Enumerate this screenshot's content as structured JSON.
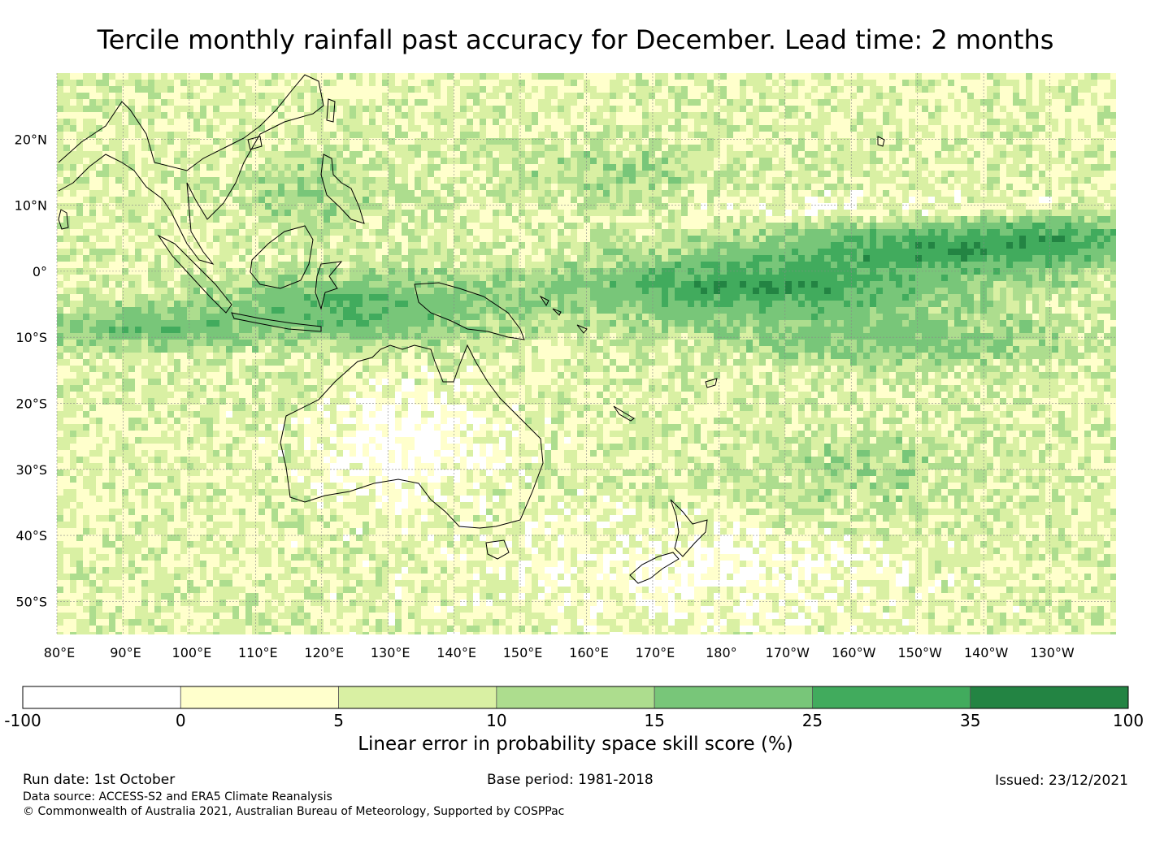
{
  "title": "Tercile monthly rainfall past accuracy for December. Lead time: 2 months",
  "map": {
    "lat_labels": [
      "20°N",
      "10°N",
      "0°",
      "10°S",
      "20°S",
      "30°S",
      "40°S",
      "50°S"
    ],
    "lat_values": [
      20,
      10,
      0,
      -10,
      -20,
      -30,
      -40,
      -50
    ],
    "lon_labels": [
      "80°E",
      "90°E",
      "100°E",
      "110°E",
      "120°E",
      "130°E",
      "140°E",
      "150°E",
      "160°E",
      "170°E",
      "180°",
      "170°W",
      "160°W",
      "150°W",
      "140°W",
      "130°W"
    ],
    "lon_values": [
      80,
      90,
      100,
      110,
      120,
      130,
      140,
      150,
      160,
      170,
      180,
      190,
      200,
      210,
      220,
      230
    ],
    "lon_range": [
      80,
      240
    ],
    "lat_range": [
      -55,
      30
    ]
  },
  "colorbar": {
    "tick_labels": [
      "-100",
      "0",
      "5",
      "10",
      "15",
      "25",
      "35",
      "100"
    ],
    "colors": [
      "#ffffff",
      "#ffffcc",
      "#d9f0a3",
      "#addd8e",
      "#78c679",
      "#41ab5d",
      "#238443"
    ],
    "label": "Linear error in probability space skill score (%)"
  },
  "footer": {
    "run_date": "Run date: 1st October",
    "base_period": "Base period: 1981-2018",
    "issued": "Issued: 23/12/2021",
    "data_source": "Data source: ACCESS-S2 and ERA5 Climate Reanalysis",
    "copyright": "© Commonwealth of Australia 2021, Australian Bureau of Meteorology, Supported by COSPPac"
  }
}
